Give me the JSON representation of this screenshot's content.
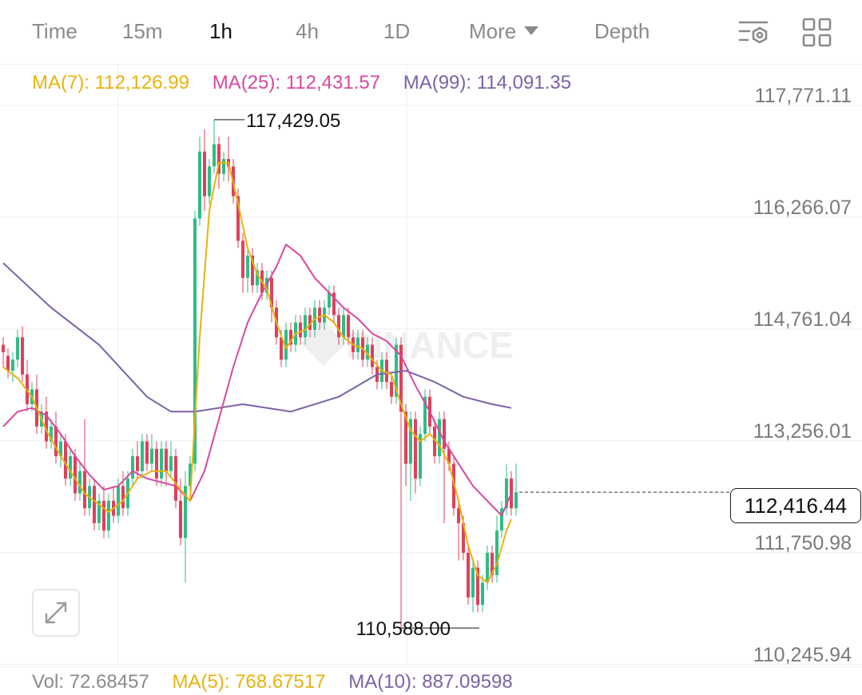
{
  "tabs": [
    {
      "label": "Time"
    },
    {
      "label": "15m"
    },
    {
      "label": "1h",
      "active": true
    },
    {
      "label": "4h"
    },
    {
      "label": "1D"
    },
    {
      "label": "More"
    },
    {
      "label": "Depth"
    }
  ],
  "icons": {
    "settings": "chart-settings-icon",
    "layout": "grid-layout-icon",
    "expand": "expand-arrows-icon"
  },
  "legend": {
    "ma7": "MA(7): 112,126.99",
    "ma25": "MA(25): 112,431.57",
    "ma99": "MA(99): 114,091.35"
  },
  "colors": {
    "ma7": "#e8b20d",
    "ma25": "#d8489f",
    "ma99": "#7b62a8",
    "up": "#2ebd85",
    "down": "#e0405a",
    "grid": "#eeeeee",
    "label": "#7a7a7a"
  },
  "price_axis": [
    "117,771.11",
    "116,266.07",
    "114,761.04",
    "113,256.01",
    "111,750.98",
    "110,245.94"
  ],
  "current_price": "112,416.44",
  "watermark": "BINANCE",
  "chart_data": {
    "type": "candlestick",
    "interval": "1h",
    "price_range": [
      110245.94,
      117771.11
    ],
    "high_marker": "117,429.05",
    "low_marker": "110,588.00",
    "last_price": 112416.44,
    "candles": [
      [
        114400,
        114300,
        114500,
        114100
      ],
      [
        114250,
        114050,
        114350,
        113950
      ],
      [
        114050,
        114200,
        114300,
        113900
      ],
      [
        114200,
        114500,
        114600,
        114100
      ],
      [
        114500,
        114000,
        114650,
        113900
      ],
      [
        114000,
        113600,
        114200,
        113500
      ],
      [
        113600,
        113800,
        113900,
        113500
      ],
      [
        113800,
        113300,
        114000,
        113200
      ],
      [
        113300,
        113500,
        113600,
        113200
      ],
      [
        113500,
        113100,
        113700,
        113000
      ],
      [
        113100,
        113300,
        113400,
        113000
      ],
      [
        113300,
        112900,
        113500,
        112800
      ],
      [
        112900,
        113100,
        113200,
        112750
      ],
      [
        113100,
        112600,
        113200,
        112500
      ],
      [
        112600,
        112900,
        113000,
        112500
      ],
      [
        112900,
        112400,
        113000,
        112300
      ],
      [
        112400,
        112700,
        112800,
        112300
      ],
      [
        112700,
        112200,
        113400,
        112100
      ],
      [
        112200,
        112500,
        112600,
        112100
      ],
      [
        112500,
        112000,
        112600,
        111900
      ],
      [
        112000,
        112300,
        112400,
        111900
      ],
      [
        112300,
        111900,
        112500,
        111800
      ],
      [
        111900,
        112300,
        112400,
        111800
      ],
      [
        112300,
        112100,
        112500,
        112000
      ],
      [
        112100,
        112500,
        112600,
        112000
      ],
      [
        112500,
        112200,
        112700,
        112100
      ],
      [
        112200,
        112600,
        112700,
        112100
      ],
      [
        112600,
        112900,
        113000,
        112500
      ],
      [
        112900,
        112700,
        113100,
        112600
      ],
      [
        112700,
        113100,
        113200,
        112600
      ],
      [
        113100,
        112800,
        113200,
        112700
      ],
      [
        112800,
        113000,
        113200,
        112700
      ],
      [
        113000,
        112600,
        113100,
        112500
      ],
      [
        112600,
        113000,
        113100,
        112500
      ],
      [
        113000,
        112700,
        113100,
        112500
      ],
      [
        112700,
        112900,
        113100,
        112600
      ],
      [
        112900,
        112300,
        113000,
        112200
      ],
      [
        112300,
        111800,
        112600,
        111700
      ],
      [
        111800,
        112500,
        112700,
        111200
      ],
      [
        112500,
        112800,
        112900,
        112400
      ],
      [
        112800,
        116100,
        116200,
        112700
      ],
      [
        116100,
        117000,
        117200,
        116000
      ],
      [
        117000,
        116400,
        117300,
        116200
      ],
      [
        116400,
        116800,
        116900,
        116300
      ],
      [
        116800,
        117100,
        117429.05,
        116700
      ],
      [
        117100,
        116700,
        117200,
        116500
      ],
      [
        116700,
        116900,
        117000,
        116600
      ],
      [
        116900,
        116800,
        117200,
        116600
      ],
      [
        116800,
        116400,
        116900,
        116300
      ],
      [
        116400,
        115800,
        116500,
        115700
      ],
      [
        115800,
        115300,
        115900,
        115100
      ],
      [
        115300,
        115600,
        115700,
        115100
      ],
      [
        115600,
        115200,
        115700,
        115100
      ],
      [
        115200,
        115400,
        115500,
        115100
      ],
      [
        115400,
        115100,
        115500,
        115000
      ],
      [
        115100,
        115300,
        115400,
        115000
      ],
      [
        115300,
        114900,
        115400,
        114700
      ],
      [
        114900,
        114500,
        115000,
        114400
      ],
      [
        114500,
        114200,
        114600,
        114100
      ],
      [
        114200,
        114600,
        114700,
        114100
      ],
      [
        114600,
        114400,
        114700,
        114300
      ],
      [
        114400,
        114700,
        114800,
        114300
      ],
      [
        114700,
        114500,
        114800,
        114400
      ],
      [
        114500,
        114800,
        114900,
        114400
      ],
      [
        114800,
        114600,
        114900,
        114500
      ],
      [
        114600,
        114900,
        115000,
        114500
      ],
      [
        114900,
        114700,
        115000,
        114600
      ],
      [
        114700,
        114900,
        115000,
        114600
      ],
      [
        114900,
        115100,
        115200,
        114800
      ],
      [
        115100,
        114800,
        115200,
        114700
      ],
      [
        114800,
        114500,
        114900,
        114400
      ],
      [
        114500,
        114800,
        114900,
        114400
      ],
      [
        114800,
        114500,
        114900,
        114400
      ],
      [
        114500,
        114300,
        114600,
        114200
      ],
      [
        114300,
        114500,
        114600,
        114200
      ],
      [
        114500,
        114200,
        114600,
        114100
      ],
      [
        114200,
        114400,
        114500,
        114100
      ],
      [
        114400,
        114100,
        114500,
        114000
      ],
      [
        114100,
        113900,
        114200,
        113800
      ],
      [
        113900,
        114200,
        114300,
        113800
      ],
      [
        114200,
        113900,
        114300,
        113800
      ],
      [
        113900,
        113700,
        114000,
        113600
      ],
      [
        113700,
        114400,
        114500,
        113600
      ],
      [
        114400,
        113500,
        114500,
        110588.0
      ],
      [
        113500,
        112800,
        113600,
        112500
      ],
      [
        112800,
        113400,
        113500,
        112300
      ],
      [
        113400,
        112600,
        113500,
        112400
      ],
      [
        112600,
        113200,
        113300,
        112500
      ],
      [
        113200,
        113700,
        113800,
        113100
      ],
      [
        113700,
        113300,
        113800,
        113200
      ],
      [
        113300,
        112900,
        113400,
        112800
      ],
      [
        112900,
        113400,
        113500,
        112800
      ],
      [
        113400,
        113000,
        113500,
        112000
      ],
      [
        113000,
        112800,
        113100,
        112700
      ],
      [
        112800,
        112200,
        112900,
        112100
      ],
      [
        112200,
        112000,
        112300,
        111500
      ],
      [
        112000,
        111600,
        112100,
        111500
      ],
      [
        111600,
        111000,
        111700,
        110900
      ],
      [
        111000,
        111400,
        111500,
        110800
      ],
      [
        111400,
        110900,
        111500,
        110800
      ],
      [
        110900,
        111200,
        111300,
        110800
      ],
      [
        111200,
        111600,
        111700,
        111100
      ],
      [
        111600,
        111300,
        111700,
        111200
      ],
      [
        111300,
        111900,
        112100,
        111200
      ],
      [
        111900,
        112200,
        112300,
        111800
      ],
      [
        112200,
        112600,
        112800,
        112100
      ],
      [
        112600,
        112200,
        112700,
        112100
      ],
      [
        112200,
        112416.44,
        112800,
        112100
      ]
    ],
    "ma7": [
      [
        0,
        114100
      ],
      [
        3,
        113950
      ],
      [
        6,
        113700
      ],
      [
        9,
        113250
      ],
      [
        12,
        112900
      ],
      [
        15,
        112600
      ],
      [
        17,
        112400
      ],
      [
        19,
        112300
      ],
      [
        22,
        112150
      ],
      [
        25,
        112300
      ],
      [
        28,
        112600
      ],
      [
        31,
        112700
      ],
      [
        34,
        112700
      ],
      [
        37,
        112450
      ],
      [
        39,
        112300
      ],
      [
        41,
        114500
      ],
      [
        43,
        116200
      ],
      [
        45,
        116850
      ],
      [
        47,
        116850
      ],
      [
        49,
        116300
      ],
      [
        51,
        115700
      ],
      [
        53,
        115350
      ],
      [
        55,
        115150
      ],
      [
        57,
        114700
      ],
      [
        59,
        114350
      ],
      [
        61,
        114550
      ],
      [
        63,
        114600
      ],
      [
        65,
        114750
      ],
      [
        67,
        114800
      ],
      [
        69,
        114700
      ],
      [
        71,
        114500
      ],
      [
        73,
        114400
      ],
      [
        75,
        114350
      ],
      [
        77,
        114200
      ],
      [
        79,
        114050
      ],
      [
        81,
        114000
      ],
      [
        83,
        113600
      ],
      [
        85,
        113250
      ],
      [
        87,
        113100
      ],
      [
        89,
        113200
      ],
      [
        91,
        113050
      ],
      [
        93,
        112800
      ],
      [
        95,
        112300
      ],
      [
        97,
        111700
      ],
      [
        99,
        111300
      ],
      [
        101,
        111200
      ],
      [
        103,
        111450
      ],
      [
        105,
        111900
      ],
      [
        106,
        112050
      ]
    ],
    "ma25": [
      [
        0,
        113300
      ],
      [
        3,
        113500
      ],
      [
        6,
        113550
      ],
      [
        9,
        113450
      ],
      [
        12,
        113200
      ],
      [
        15,
        112900
      ],
      [
        18,
        112650
      ],
      [
        21,
        112450
      ],
      [
        24,
        112500
      ],
      [
        27,
        112700
      ],
      [
        30,
        112600
      ],
      [
        33,
        112550
      ],
      [
        36,
        112500
      ],
      [
        39,
        112300
      ],
      [
        42,
        112700
      ],
      [
        45,
        113400
      ],
      [
        48,
        114100
      ],
      [
        51,
        114700
      ],
      [
        54,
        115100
      ],
      [
        57,
        115450
      ],
      [
        59,
        115750
      ],
      [
        62,
        115600
      ],
      [
        65,
        115300
      ],
      [
        68,
        115100
      ],
      [
        71,
        114900
      ],
      [
        74,
        114750
      ],
      [
        77,
        114550
      ],
      [
        80,
        114450
      ],
      [
        83,
        114250
      ],
      [
        86,
        113850
      ],
      [
        89,
        113500
      ],
      [
        92,
        113100
      ],
      [
        95,
        112800
      ],
      [
        98,
        112500
      ],
      [
        101,
        112300
      ],
      [
        104,
        112100
      ],
      [
        106,
        112400
      ]
    ],
    "ma99": [
      [
        0,
        115500
      ],
      [
        10,
        114900
      ],
      [
        20,
        114400
      ],
      [
        30,
        113700
      ],
      [
        35,
        113500
      ],
      [
        40,
        113500
      ],
      [
        50,
        113600
      ],
      [
        60,
        113500
      ],
      [
        70,
        113700
      ],
      [
        78,
        114000
      ],
      [
        84,
        114050
      ],
      [
        90,
        113900
      ],
      [
        96,
        113700
      ],
      [
        102,
        113600
      ],
      [
        106,
        113550
      ]
    ]
  },
  "volume": {
    "vol": "Vol: 72.68457",
    "ma5": "MA(5): 768.67517",
    "ma10": "MA(10): 887.09598"
  }
}
